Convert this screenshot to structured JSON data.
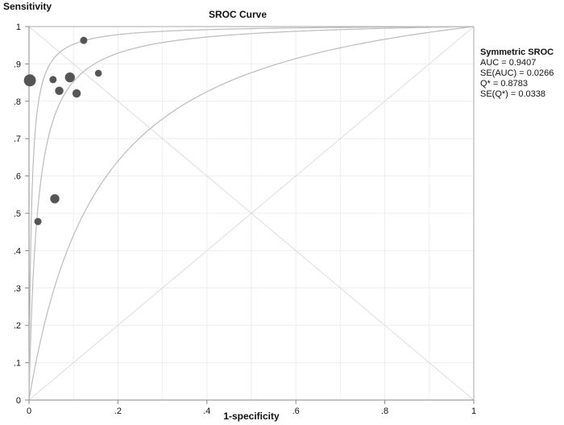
{
  "chart_data": {
    "type": "scatter",
    "title": "SROC Curve",
    "xlabel": "1-specificity",
    "ylabel": "Sensitivity",
    "xlim": [
      0,
      1
    ],
    "ylim": [
      0,
      1
    ],
    "xticks": [
      "0",
      ".2",
      ".4",
      ".6",
      ".8",
      "1"
    ],
    "yticks": [
      "0",
      ".1",
      ".2",
      ".3",
      ".4",
      ".5",
      ".6",
      ".7",
      ".8",
      ".9",
      "1"
    ],
    "grid": true,
    "points": [
      {
        "x": 0.002,
        "y": 0.856,
        "weight": 3
      },
      {
        "x": 0.054,
        "y": 0.858,
        "weight": 1
      },
      {
        "x": 0.092,
        "y": 0.864,
        "weight": 2
      },
      {
        "x": 0.068,
        "y": 0.828,
        "weight": 1.4
      },
      {
        "x": 0.107,
        "y": 0.821,
        "weight": 1.4
      },
      {
        "x": 0.123,
        "y": 0.963,
        "weight": 1
      },
      {
        "x": 0.156,
        "y": 0.875,
        "weight": 0.9
      },
      {
        "x": 0.058,
        "y": 0.539,
        "weight": 1.7
      },
      {
        "x": 0.02,
        "y": 0.478,
        "weight": 1
      }
    ],
    "curves_log_dor": [
      5.2,
      3.953,
      1.96
    ],
    "legend": {
      "title": "Symmetric SROC",
      "lines": [
        "AUC = 0.9407",
        "SE(AUC) = 0.0266",
        "Q* = 0.8783",
        "SE(Q*) = 0.0338"
      ]
    }
  }
}
